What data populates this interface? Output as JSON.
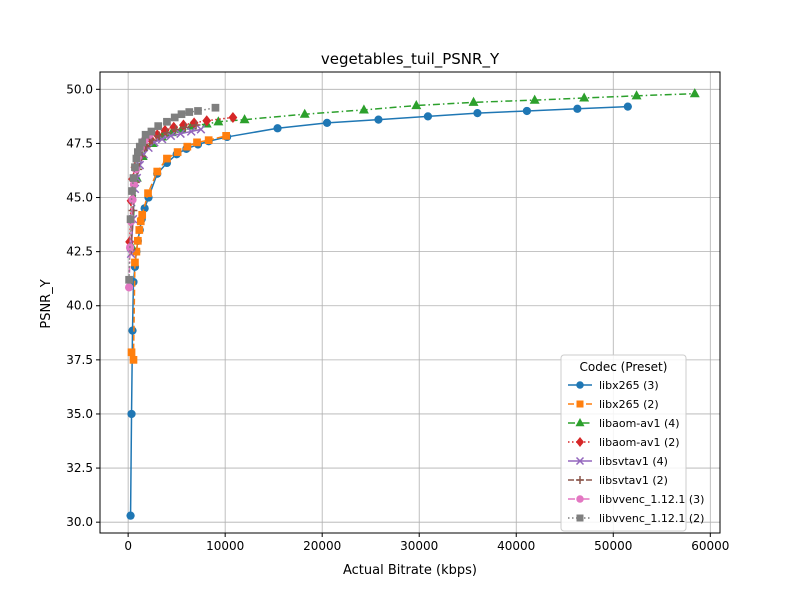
{
  "chart_data": {
    "type": "line",
    "title": "vegetables_tuil_PSNR_Y",
    "xlabel": "Actual Bitrate (kbps)",
    "ylabel": "PSNR_Y",
    "xlim": [
      -2900,
      61000
    ],
    "ylim": [
      29.5,
      50.8
    ],
    "xticks": [
      0,
      10000,
      20000,
      30000,
      40000,
      50000,
      60000
    ],
    "yticks": [
      30.0,
      32.5,
      35.0,
      37.5,
      40.0,
      42.5,
      45.0,
      47.5,
      50.0
    ],
    "grid": true,
    "legend": {
      "title": "Codec (Preset)",
      "placement": "lower right"
    },
    "series": [
      {
        "name": "libx265 (3)",
        "color": "#1f77b4",
        "marker": "circle",
        "linestyle": "solid",
        "x": [
          250,
          350,
          450,
          550,
          700,
          850,
          1000,
          1200,
          1400,
          1700,
          2100,
          3000,
          4000,
          5000,
          6000,
          7200,
          8300,
          10200,
          15400,
          20500,
          25800,
          30900,
          36000,
          41100,
          46300,
          51500
        ],
        "y": [
          30.3,
          35.0,
          38.85,
          41.1,
          41.8,
          42.5,
          43.0,
          43.5,
          44.0,
          44.5,
          45.0,
          46.1,
          46.6,
          47.0,
          47.25,
          47.45,
          47.6,
          47.8,
          48.2,
          48.45,
          48.6,
          48.75,
          48.9,
          49.0,
          49.1,
          49.2
        ]
      },
      {
        "name": "libx265 (2)",
        "color": "#ff7f0e",
        "marker": "square",
        "linestyle": "dashed",
        "x": [
          350,
          550,
          700,
          850,
          1000,
          1150,
          1300,
          1450,
          2050,
          3000,
          4000,
          5100,
          6100,
          7100,
          8300,
          10100
        ],
        "y": [
          37.85,
          37.5,
          42.0,
          42.5,
          43.0,
          43.5,
          43.9,
          44.2,
          45.2,
          46.2,
          46.8,
          47.1,
          47.35,
          47.55,
          47.65,
          47.85
        ]
      },
      {
        "name": "libaom-av1 (4)",
        "color": "#2ca02c",
        "marker": "triangle",
        "linestyle": "dashdot",
        "x": [
          300,
          900,
          1500,
          2500,
          3500,
          4500,
          5500,
          6500,
          8100,
          9300,
          12000,
          18200,
          24300,
          29700,
          35600,
          41900,
          47000,
          52400,
          58400
        ],
        "y": [
          42.8,
          45.9,
          46.9,
          47.5,
          47.8,
          48.0,
          48.15,
          48.3,
          48.4,
          48.5,
          48.6,
          48.85,
          49.05,
          49.25,
          49.4,
          49.5,
          49.6,
          49.7,
          49.8
        ]
      },
      {
        "name": "libaom-av1 (2)",
        "color": "#d62728",
        "marker": "diamond",
        "linestyle": "dotted",
        "x": [
          150,
          300,
          450,
          700,
          1100,
          1700,
          2300,
          3000,
          3800,
          4700,
          5700,
          6800,
          8100,
          10800
        ],
        "y": [
          42.95,
          44.85,
          45.85,
          46.4,
          46.9,
          47.4,
          47.7,
          47.9,
          48.1,
          48.25,
          48.35,
          48.45,
          48.55,
          48.7
        ]
      },
      {
        "name": "libsvtav1 (4)",
        "color": "#9467bd",
        "marker": "x",
        "linestyle": "solid",
        "x": [
          300,
          500,
          700,
          900,
          1200,
          1600,
          2100,
          2700,
          3500,
          4400,
          5400,
          6500,
          7500
        ],
        "y": [
          42.4,
          44.0,
          45.4,
          45.9,
          46.5,
          47.0,
          47.3,
          47.55,
          47.7,
          47.85,
          47.95,
          48.05,
          48.15
        ]
      },
      {
        "name": "libsvtav1 (2)",
        "color": "#8c564b",
        "marker": "plus",
        "linestyle": "dashed",
        "x": [
          300,
          500,
          750,
          1000,
          1400,
          1900,
          2500,
          3200,
          4000,
          4900,
          5900,
          7000
        ],
        "y": [
          42.6,
          44.4,
          45.7,
          46.3,
          46.9,
          47.35,
          47.65,
          47.85,
          48.0,
          48.15,
          48.25,
          48.35
        ]
      },
      {
        "name": "libvvenc_1.12.1 (3)",
        "color": "#e377c2",
        "marker": "circle",
        "linestyle": "dashdot",
        "x": [
          100,
          200,
          300,
          450,
          600,
          800,
          1000,
          1300,
          1700,
          2200
        ],
        "y": [
          40.85,
          42.7,
          43.9,
          44.9,
          45.6,
          46.3,
          46.85,
          47.3,
          47.65,
          47.9
        ]
      },
      {
        "name": "libvvenc_1.12.1 (2)",
        "color": "#7f7f7f",
        "marker": "square",
        "linestyle": "dotted",
        "x": [
          100,
          250,
          400,
          550,
          700,
          850,
          1000,
          1200,
          1450,
          1800,
          2400,
          3100,
          4000,
          4800,
          5500,
          6300,
          7200,
          9000
        ],
        "y": [
          41.2,
          44.0,
          45.3,
          45.9,
          46.4,
          46.8,
          47.1,
          47.35,
          47.55,
          47.9,
          48.05,
          48.3,
          48.5,
          48.7,
          48.85,
          48.95,
          49.0,
          49.15
        ]
      }
    ]
  }
}
